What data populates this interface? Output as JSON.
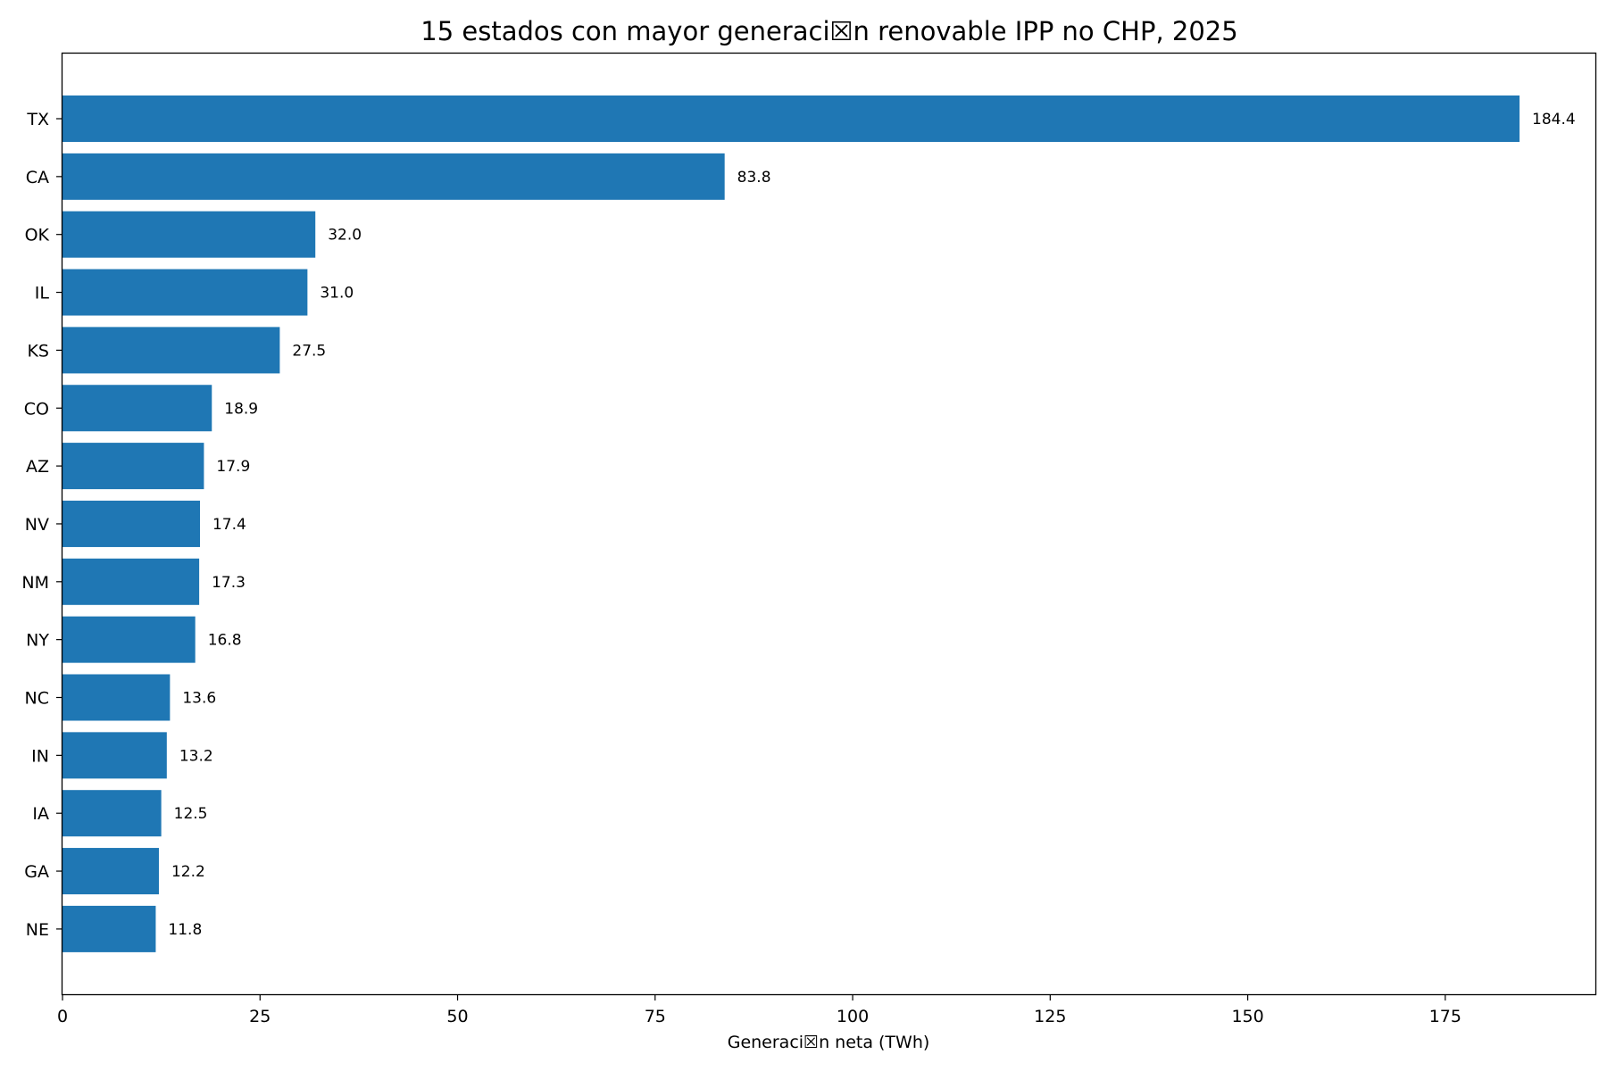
{
  "chart_data": {
    "type": "bar",
    "orientation": "horizontal",
    "title": "15 estados con mayor generaci☒n renovable IPP no CHP, 2025",
    "xlabel": "Generaci☒n neta (TWh)",
    "ylabel": "",
    "xlim": [
      0,
      194
    ],
    "xticks": [
      0,
      25,
      50,
      75,
      100,
      125,
      150,
      175
    ],
    "grid": false,
    "bar_color": "#1f77b4",
    "categories": [
      "TX",
      "CA",
      "OK",
      "IL",
      "KS",
      "CO",
      "AZ",
      "NV",
      "NM",
      "NY",
      "NC",
      "IN",
      "IA",
      "GA",
      "NE"
    ],
    "values": [
      184.4,
      83.8,
      32.0,
      31.0,
      27.5,
      18.9,
      17.9,
      17.4,
      17.3,
      16.8,
      13.6,
      13.2,
      12.5,
      12.2,
      11.8
    ],
    "value_labels": [
      "184.4",
      "83.8",
      "32.0",
      "31.0",
      "27.5",
      "18.9",
      "17.9",
      "17.4",
      "17.3",
      "16.8",
      "13.6",
      "13.2",
      "12.5",
      "12.2",
      "11.8"
    ]
  }
}
